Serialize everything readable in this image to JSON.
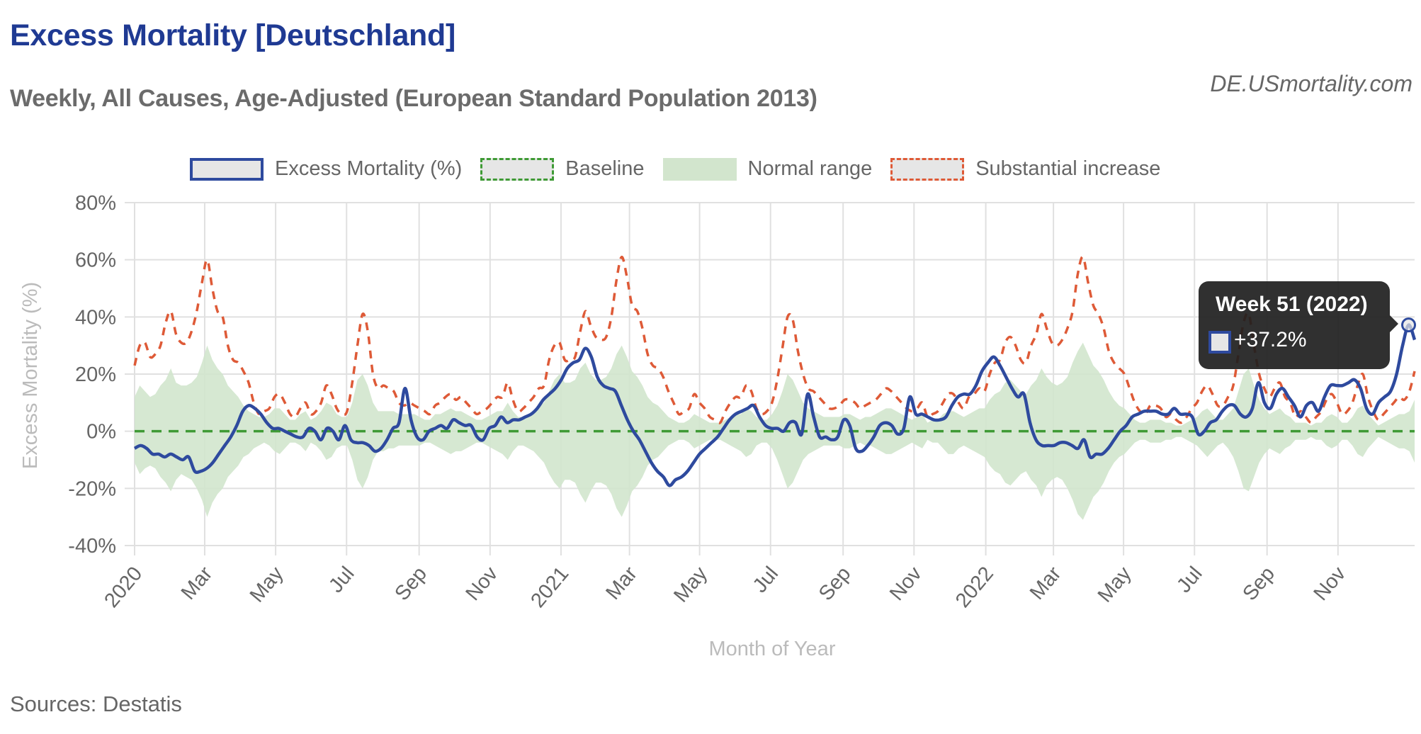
{
  "header": {
    "title": "Excess Mortality [Deutschland]",
    "subtitle": "Weekly, All Causes, Age-Adjusted (European Standard Population 2013)",
    "site": "DE.USmortality.com"
  },
  "footer": {
    "sources": "Sources: Destatis"
  },
  "tooltip": {
    "title": "Week 51 (2022)",
    "value": "+37.2%"
  },
  "colors": {
    "excess": "#2e4a9e",
    "baseline": "#3f9a35",
    "normal_range": "#d2e5cd",
    "substantial_increase": "#de5a37",
    "grid": "#e0e0e0",
    "tick_text": "#666666",
    "axis_title": "#bbbbbb"
  },
  "chart_data": {
    "type": "line",
    "title": "Excess Mortality [Deutschland]",
    "subtitle": "Weekly, All Causes, Age-Adjusted (European Standard Population 2013)",
    "xlabel": "Month of Year",
    "ylabel": "Excess Mortality (%)",
    "ylim": [
      -40,
      80
    ],
    "yticks": [
      "80%",
      "60%",
      "40%",
      "20%",
      "0%",
      "-20%",
      "-40%"
    ],
    "ytick_values": [
      80,
      60,
      40,
      20,
      0,
      -20,
      -40
    ],
    "xticks": [
      "2020",
      "Mar",
      "May",
      "Jul",
      "Sep",
      "Nov",
      "2021",
      "Mar",
      "May",
      "Jul",
      "Sep",
      "Nov",
      "2022",
      "Mar",
      "May",
      "Jul",
      "Sep",
      "Nov"
    ],
    "xtick_weeks": [
      0,
      8.6,
      17.3,
      26,
      34.9,
      43.6,
      52.3,
      60.7,
      69.3,
      78,
      86.9,
      95.6,
      104.4,
      112.7,
      121.3,
      130,
      138.9,
      147.6
    ],
    "total_weeks": 157,
    "grid": true,
    "legend": {
      "position": "top",
      "entries": [
        "Excess Mortality (%)",
        "Baseline",
        "Normal range",
        "Substantial increase"
      ]
    },
    "series": [
      {
        "name": "Excess Mortality (%)",
        "style": "solid",
        "values": [
          -6,
          -5,
          -6,
          -8,
          -8,
          -9,
          -8,
          -9,
          -10,
          -9,
          -14,
          -14,
          -13,
          -11,
          -8,
          -5,
          -2,
          2,
          7,
          9,
          8,
          6,
          3,
          1,
          1,
          0,
          -1,
          -2,
          -2,
          1,
          0,
          -3,
          1,
          0,
          -3,
          2,
          -3,
          -4,
          -4,
          -5,
          -7,
          -6,
          -3,
          1,
          3,
          15,
          4,
          -2,
          -3,
          0,
          1,
          2,
          1,
          4,
          3,
          2,
          2,
          -2,
          -3,
          1,
          2,
          5,
          3,
          4,
          4,
          5,
          6,
          8,
          11,
          13,
          15,
          18,
          22,
          24,
          25,
          29,
          26,
          19,
          16,
          15,
          14,
          9,
          4,
          0,
          -3,
          -7,
          -11,
          -14,
          -16,
          -19,
          -17,
          -16,
          -14,
          -11,
          -8,
          -6,
          -4,
          -2,
          1,
          4,
          6,
          7,
          8,
          9,
          5,
          2,
          1,
          1,
          0,
          3,
          3,
          -1,
          13,
          5,
          -2,
          -2,
          -3,
          -2,
          4,
          2,
          -6,
          -7,
          -5,
          -2,
          2,
          3,
          2,
          -1,
          1,
          12,
          6,
          6,
          5,
          4,
          4,
          5,
          9,
          12,
          13,
          13,
          16,
          21,
          24,
          26,
          23,
          19,
          15,
          12,
          13,
          3,
          -3,
          -5,
          -5,
          -5,
          -4,
          -4,
          -5,
          -6,
          -3,
          -9,
          -8,
          -8,
          -6,
          -3,
          0,
          2,
          5,
          6,
          7,
          7,
          7,
          6,
          6,
          8,
          6,
          6,
          5,
          -1,
          0,
          3,
          4,
          7,
          9,
          9,
          6,
          5,
          8,
          17,
          10,
          8,
          13,
          15,
          12,
          9,
          5,
          9,
          10,
          7,
          12,
          16,
          16,
          16,
          17,
          18,
          15,
          8,
          6,
          10,
          12,
          14,
          20,
          30,
          37.2,
          32
        ]
      },
      {
        "name": "Baseline",
        "style": "dashed",
        "values": "constant 0"
      },
      {
        "name": "Substantial increase",
        "style": "dashed",
        "values": [
          23,
          30,
          31,
          26,
          27,
          30,
          38,
          42,
          34,
          31,
          31,
          35,
          42,
          52,
          60,
          50,
          42,
          40,
          30,
          25,
          24,
          21,
          17,
          10,
          6,
          7,
          8,
          12,
          13,
          10,
          6,
          5,
          8,
          10,
          6,
          7,
          10,
          16,
          13,
          8,
          6,
          7,
          17,
          30,
          41,
          35,
          20,
          15,
          16,
          15,
          14,
          10,
          9,
          10,
          9,
          8,
          7,
          6,
          9,
          10,
          12,
          13,
          11,
          12,
          10,
          8,
          6,
          7,
          8,
          10,
          12,
          12,
          17,
          11,
          7,
          8,
          10,
          12,
          15,
          16,
          25,
          30,
          31,
          25,
          25,
          26,
          35,
          42,
          37,
          33,
          32,
          33,
          40,
          53,
          61,
          54,
          44,
          42,
          36,
          27,
          23,
          22,
          19,
          14,
          10,
          6,
          7,
          8,
          13,
          10,
          8,
          5,
          4,
          3,
          7,
          10,
          12,
          12,
          16,
          14,
          8,
          6,
          7,
          10,
          18,
          29,
          40,
          39,
          28,
          20,
          15,
          14,
          12,
          10,
          8,
          8,
          9,
          11,
          11,
          10,
          8,
          9,
          10,
          11,
          13,
          15,
          14,
          12,
          10,
          8,
          7,
          8,
          10,
          5,
          6,
          7,
          10,
          13,
          13,
          10,
          8,
          12,
          13,
          15,
          14,
          20,
          24,
          25,
          31,
          33,
          30,
          25,
          24,
          30,
          34,
          41,
          36,
          31,
          30,
          32,
          36,
          42,
          55,
          61,
          52,
          44,
          41,
          36,
          28,
          24,
          22,
          20,
          15,
          10,
          7,
          6,
          9,
          9,
          8,
          5,
          6,
          4,
          3,
          5,
          8,
          10,
          14,
          16,
          13,
          9,
          9,
          12,
          16,
          27,
          38,
          41,
          30,
          20,
          15,
          12,
          15,
          17,
          12,
          10,
          5,
          7,
          5,
          3,
          5,
          7,
          11,
          13,
          10,
          6,
          7,
          10,
          16,
          20,
          12,
          7,
          4,
          6,
          8,
          10,
          12,
          11,
          14,
          21
        ]
      }
    ],
    "normal_range": {
      "name": "Normal range",
      "upper": [
        12,
        16,
        14,
        12,
        13,
        16,
        18,
        22,
        17,
        16,
        16,
        17,
        19,
        24,
        30,
        25,
        22,
        20,
        16,
        14,
        12,
        9,
        7,
        6,
        5,
        5,
        6,
        8,
        8,
        6,
        4,
        4,
        6,
        7,
        4,
        5,
        7,
        10,
        9,
        6,
        5,
        5,
        10,
        18,
        20,
        16,
        10,
        7,
        7,
        7,
        7,
        6,
        6,
        6,
        6,
        5,
        4,
        4,
        6,
        6,
        7,
        8,
        7,
        7,
        6,
        5,
        4,
        4,
        5,
        6,
        7,
        7,
        10,
        7,
        5,
        5,
        6,
        7,
        9,
        10,
        14,
        18,
        20,
        17,
        17,
        18,
        22,
        24,
        20,
        18,
        18,
        19,
        22,
        27,
        30,
        26,
        21,
        19,
        16,
        12,
        10,
        9,
        7,
        5,
        4,
        3,
        3,
        4,
        6,
        5,
        4,
        3,
        3,
        3,
        4,
        5,
        6,
        6,
        8,
        7,
        5,
        4,
        4,
        6,
        9,
        14,
        20,
        18,
        14,
        10,
        8,
        7,
        6,
        5,
        5,
        5,
        5,
        6,
        6,
        5,
        4,
        5,
        5,
        6,
        7,
        8,
        8,
        7,
        6,
        5,
        4,
        5,
        6,
        3,
        4,
        4,
        6,
        7,
        7,
        6,
        5,
        6,
        7,
        8,
        8,
        11,
        13,
        14,
        17,
        18,
        16,
        14,
        13,
        16,
        18,
        22,
        19,
        17,
        16,
        17,
        19,
        24,
        28,
        31,
        27,
        23,
        21,
        18,
        14,
        11,
        9,
        8,
        6,
        4,
        3,
        3,
        4,
        4,
        4,
        3,
        3,
        2,
        2,
        3,
        4,
        5,
        7,
        8,
        6,
        4,
        4,
        6,
        8,
        14,
        20,
        22,
        16,
        11,
        8,
        6,
        7,
        8,
        6,
        5,
        3,
        3,
        3,
        2,
        3,
        3,
        5,
        6,
        5,
        3,
        3,
        5,
        8,
        9,
        6,
        4,
        2,
        3,
        4,
        5,
        6,
        6,
        7,
        11
      ],
      "lower": [
        -11,
        -15,
        -13,
        -12,
        -13,
        -16,
        -18,
        -21,
        -17,
        -15,
        -16,
        -17,
        -20,
        -24,
        -30,
        -25,
        -22,
        -20,
        -16,
        -14,
        -12,
        -9,
        -8,
        -6,
        -5,
        -4,
        -5,
        -7,
        -8,
        -6,
        -4,
        -4,
        -5,
        -7,
        -4,
        -5,
        -7,
        -10,
        -9,
        -6,
        -5,
        -5,
        -10,
        -17,
        -20,
        -16,
        -10,
        -7,
        -7,
        -6,
        -6,
        -5,
        -5,
        -5,
        -5,
        -5,
        -4,
        -4,
        -5,
        -6,
        -7,
        -8,
        -7,
        -7,
        -6,
        -5,
        -4,
        -4,
        -5,
        -6,
        -7,
        -8,
        -10,
        -7,
        -5,
        -5,
        -6,
        -7,
        -9,
        -11,
        -15,
        -18,
        -20,
        -17,
        -17,
        -18,
        -22,
        -25,
        -21,
        -18,
        -18,
        -19,
        -22,
        -27,
        -30,
        -26,
        -21,
        -19,
        -16,
        -12,
        -10,
        -9,
        -7,
        -5,
        -4,
        -3,
        -3,
        -4,
        -6,
        -5,
        -4,
        -3,
        -3,
        -3,
        -4,
        -5,
        -6,
        -7,
        -9,
        -8,
        -5,
        -4,
        -4,
        -6,
        -10,
        -15,
        -20,
        -18,
        -14,
        -10,
        -8,
        -7,
        -6,
        -5,
        -5,
        -5,
        -5,
        -6,
        -6,
        -5,
        -4,
        -5,
        -5,
        -6,
        -7,
        -8,
        -8,
        -7,
        -6,
        -5,
        -4,
        -5,
        -6,
        -3,
        -4,
        -4,
        -6,
        -8,
        -8,
        -6,
        -5,
        -6,
        -7,
        -8,
        -9,
        -12,
        -14,
        -15,
        -18,
        -19,
        -17,
        -15,
        -14,
        -17,
        -19,
        -23,
        -19,
        -17,
        -16,
        -17,
        -20,
        -24,
        -29,
        -31,
        -27,
        -23,
        -21,
        -18,
        -14,
        -11,
        -9,
        -8,
        -6,
        -4,
        -3,
        -3,
        -4,
        -4,
        -4,
        -3,
        -3,
        -2,
        -2,
        -3,
        -4,
        -5,
        -7,
        -9,
        -7,
        -5,
        -4,
        -6,
        -9,
        -14,
        -20,
        -21,
        -16,
        -11,
        -8,
        -6,
        -7,
        -8,
        -6,
        -5,
        -3,
        -3,
        -3,
        -2,
        -3,
        -3,
        -5,
        -6,
        -5,
        -3,
        -3,
        -5,
        -8,
        -9,
        -6,
        -4,
        -2,
        -3,
        -4,
        -5,
        -6,
        -6,
        -7,
        -11
      ]
    },
    "highlight": {
      "label": "Week 51 (2022)",
      "value": 37.2
    }
  }
}
